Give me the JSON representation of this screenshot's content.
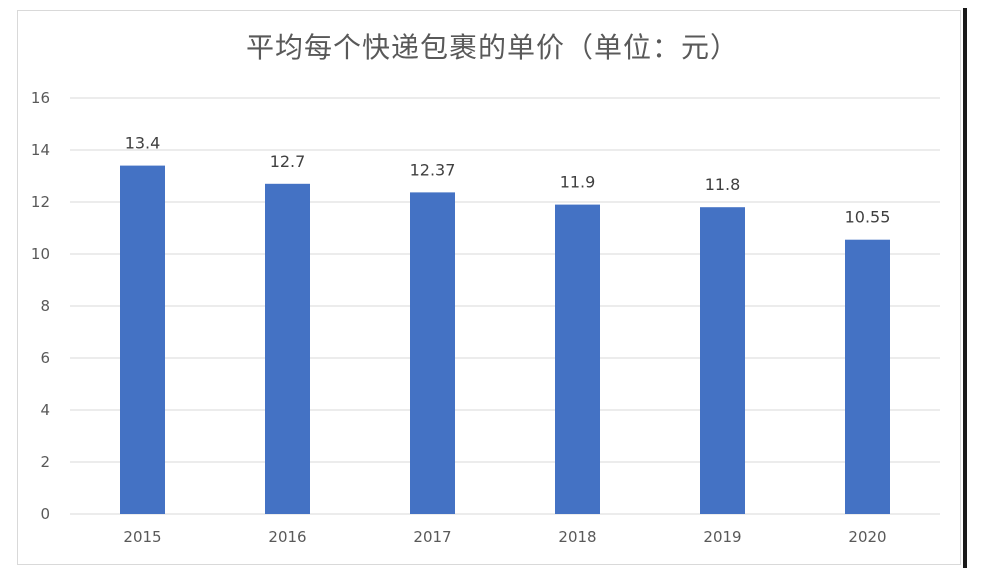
{
  "chart_data": {
    "type": "bar",
    "title": "平均每个快递包裹的单价（单位：元）",
    "categories": [
      "2015",
      "2016",
      "2017",
      "2018",
      "2019",
      "2020"
    ],
    "values": [
      13.4,
      12.7,
      12.37,
      11.9,
      11.8,
      10.55
    ],
    "data_labels": [
      "13.4",
      "12.7",
      "12.37",
      "11.9",
      "11.8",
      "10.55"
    ],
    "ylim": [
      0,
      16
    ],
    "y_ticks": [
      "0",
      "2",
      "4",
      "6",
      "8",
      "10",
      "12",
      "14",
      "16"
    ],
    "grid": true,
    "legend": "none",
    "bar_color": "#4472c4",
    "grid_color": "#d9d9d9"
  }
}
